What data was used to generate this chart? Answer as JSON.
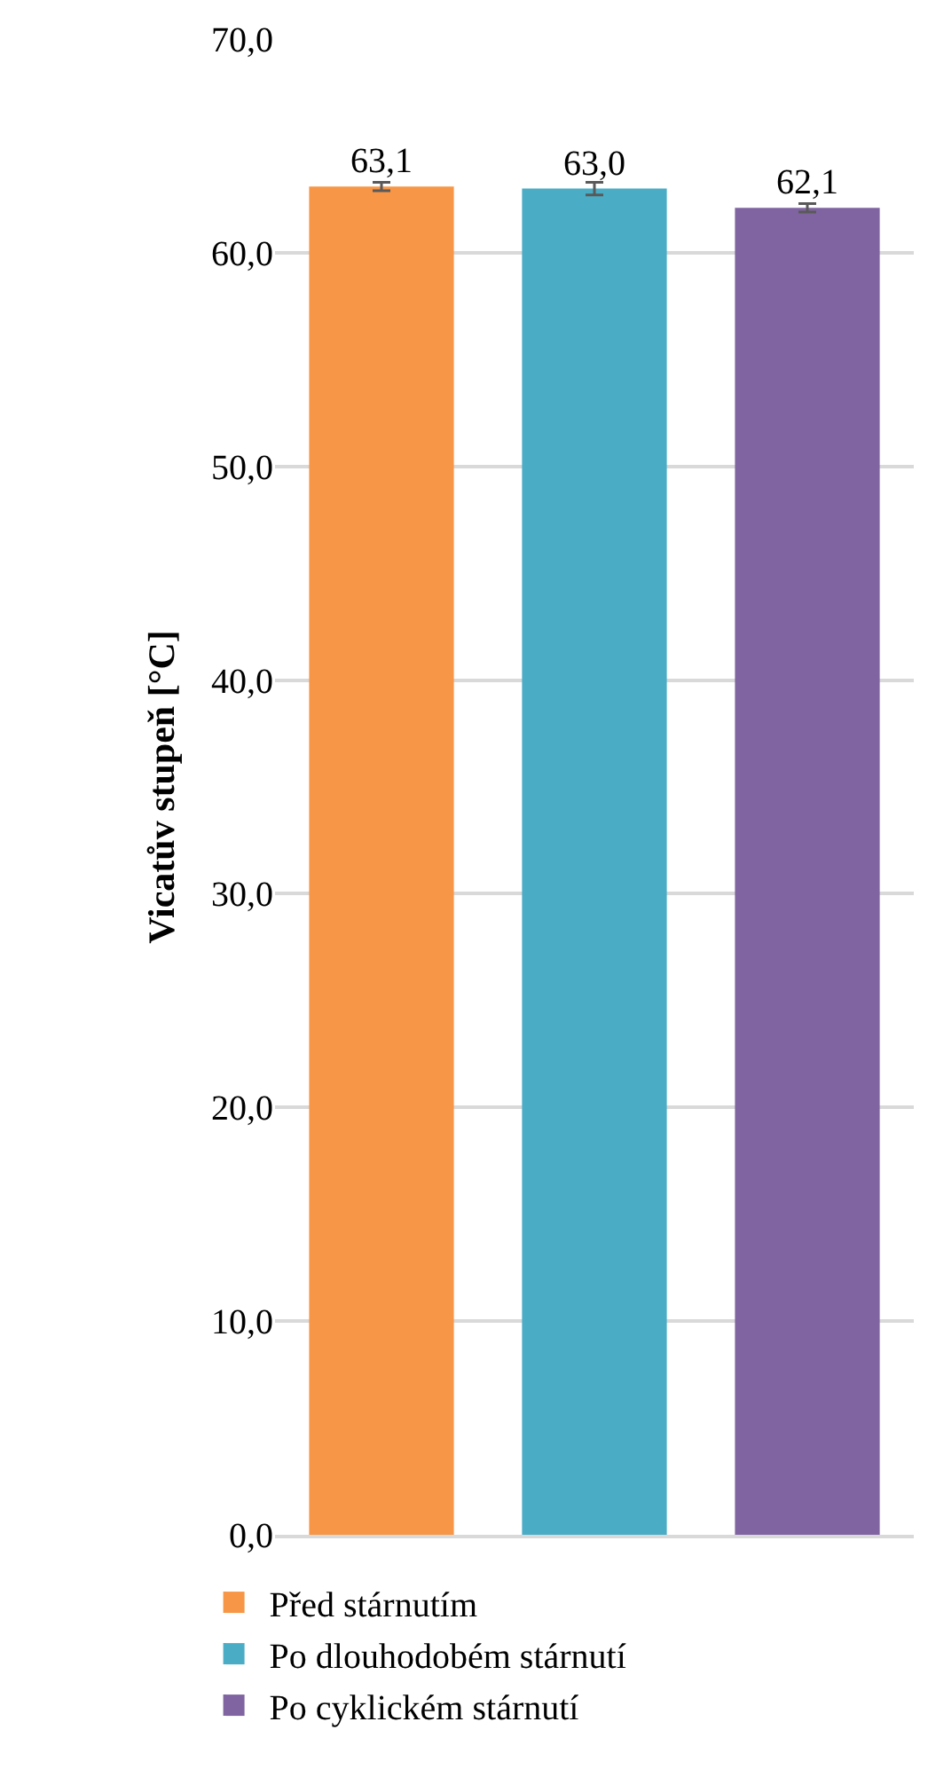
{
  "chart_data": {
    "type": "bar",
    "ylabel": "Vicatův stupeň [°C]",
    "categories": [
      null,
      null,
      null
    ],
    "series": [
      {
        "name": "Před stárnutím",
        "color": "#f79646",
        "values": [
          63.1,
          null,
          null
        ],
        "errors": [
          0.2,
          null,
          null
        ],
        "value_labels": [
          "63,1",
          null,
          null
        ]
      },
      {
        "name": "Po dlouhodobém stárnutí",
        "color": "#4bacc6",
        "values": [
          null,
          63.0,
          null
        ],
        "errors": [
          null,
          0.3,
          null
        ],
        "value_labels": [
          null,
          "63,0",
          null
        ]
      },
      {
        "name": "Po cyklickém stárnutí",
        "color": "#8064a2",
        "values": [
          null,
          null,
          62.1
        ],
        "errors": [
          null,
          null,
          0.2
        ],
        "value_labels": [
          null,
          null,
          "62,1"
        ]
      }
    ],
    "ylim": [
      0,
      70
    ],
    "yticks": [
      {
        "value": 0,
        "label": "0,0"
      },
      {
        "value": 10,
        "label": "10,0"
      },
      {
        "value": 20,
        "label": "20,0"
      },
      {
        "value": 30,
        "label": "30,0"
      },
      {
        "value": 40,
        "label": "40,0"
      },
      {
        "value": 50,
        "label": "50,0"
      },
      {
        "value": 60,
        "label": "60,0"
      },
      {
        "value": 70,
        "label": "70,0"
      }
    ],
    "grid": "y",
    "legend": "bottom"
  }
}
